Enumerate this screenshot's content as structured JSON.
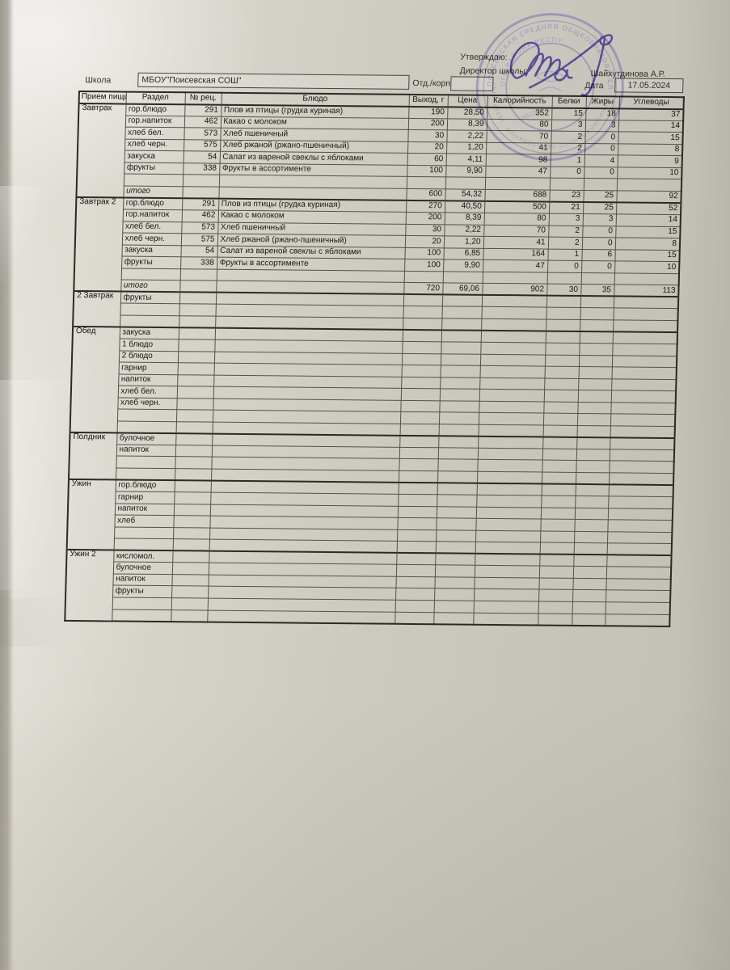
{
  "header": {
    "approve_label": "Утверждаю:",
    "director_label": "Директор школы:",
    "director_name": "Шайхутдинова А.Р.",
    "school_label": "Школа",
    "school_value": "МБОУ\"Поисевская СОШ\"",
    "dept_label": "Отд./корп",
    "dept_value": "",
    "date_label": "Дата",
    "date_value": "17.05.2024"
  },
  "table": {
    "headers": [
      "Прием пищи",
      "Раздел",
      "№ рец.",
      "Блюдо",
      "Выход, г",
      "Цена",
      "Калорийность",
      "Белки",
      "Жиры",
      "Углеводы"
    ],
    "blocks": [
      {
        "meal": "Завтрак",
        "rows": [
          {
            "section": "гор.блюдо",
            "rec": "291",
            "dish": "Плов из птицы (грудка куриная)",
            "out": "190",
            "price": "28,50",
            "cal": "352",
            "protein": "15",
            "fat": "18",
            "carbs": "37"
          },
          {
            "section": "гор.напиток",
            "rec": "462",
            "dish": "Какао с молоком",
            "out": "200",
            "price": "8,39",
            "cal": "80",
            "protein": "3",
            "fat": "3",
            "carbs": "14"
          },
          {
            "section": "хлеб бел.",
            "rec": "573",
            "dish": "Хлеб пшеничный",
            "out": "30",
            "price": "2,22",
            "cal": "70",
            "protein": "2",
            "fat": "0",
            "carbs": "15"
          },
          {
            "section": "хлеб черн.",
            "rec": "575",
            "dish": "Хлеб ржаной (ржано-пшеничный)",
            "out": "20",
            "price": "1,20",
            "cal": "41",
            "protein": "2",
            "fat": "0",
            "carbs": "8"
          },
          {
            "section": "закуска",
            "rec": "54",
            "dish": "Салат  из вареной свеклы с яблоками",
            "out": "60",
            "price": "4,11",
            "cal": "98",
            "protein": "1",
            "fat": "4",
            "carbs": "9"
          },
          {
            "section": "фрукты",
            "rec": "338",
            "dish": "Фрукты в ассортименте",
            "out": "100",
            "price": "9,90",
            "cal": "47",
            "protein": "0",
            "fat": "0",
            "carbs": "10"
          },
          {},
          {
            "total": true,
            "section": "итого",
            "out": "600",
            "price": "54,32",
            "cal": "688",
            "protein": "23",
            "fat": "25",
            "carbs": "92"
          }
        ]
      },
      {
        "meal": "Завтрак 2",
        "rows": [
          {
            "section": "гор.блюдо",
            "rec": "291",
            "dish": "Плов из птицы (грудка куриная)",
            "out": "270",
            "price": "40,50",
            "cal": "500",
            "protein": "21",
            "fat": "25",
            "carbs": "52"
          },
          {
            "section": "гор.напиток",
            "rec": "462",
            "dish": "Какао с молоком",
            "out": "200",
            "price": "8,39",
            "cal": "80",
            "protein": "3",
            "fat": "3",
            "carbs": "14"
          },
          {
            "section": "хлеб бел.",
            "rec": "573",
            "dish": "Хлеб пшеничный",
            "out": "30",
            "price": "2,22",
            "cal": "70",
            "protein": "2",
            "fat": "0",
            "carbs": "15"
          },
          {
            "section": "хлеб черн.",
            "rec": "575",
            "dish": "Хлеб ржаной (ржано-пшеничный)",
            "out": "20",
            "price": "1,20",
            "cal": "41",
            "protein": "2",
            "fat": "0",
            "carbs": "8"
          },
          {
            "section": "закуска",
            "rec": "54",
            "dish": "Салат  из вареной свеклы с  яблоками",
            "out": "100",
            "price": "6,85",
            "cal": "164",
            "protein": "1",
            "fat": "6",
            "carbs": "15"
          },
          {
            "section": "фрукты",
            "rec": "338",
            "dish": "Фрукты в ассортименте",
            "out": "100",
            "price": "9,90",
            "cal": "47",
            "protein": "0",
            "fat": "0",
            "carbs": "10"
          },
          {},
          {
            "total": true,
            "section": "итого",
            "out": "720",
            "price": "69,06",
            "cal": "902",
            "protein": "30",
            "fat": "35",
            "carbs": "113"
          }
        ]
      },
      {
        "meal": "2 Завтрак",
        "rows": [
          {
            "section": "фрукты"
          },
          {},
          {}
        ]
      },
      {
        "meal": "Обед",
        "rows": [
          {
            "section": "закуска"
          },
          {
            "section": "1 блюдо"
          },
          {
            "section": "2 блюдо"
          },
          {
            "section": "гарнир"
          },
          {
            "section": "напиток"
          },
          {
            "section": "хлеб бел."
          },
          {
            "section": "хлеб черн."
          },
          {},
          {}
        ]
      },
      {
        "meal": "Полдник",
        "rows": [
          {
            "section": "булочное"
          },
          {
            "section": "напиток"
          },
          {},
          {}
        ]
      },
      {
        "meal": "Ужин",
        "rows": [
          {
            "section": "гор.блюдо"
          },
          {
            "section": "гарнир"
          },
          {
            "section": "напиток"
          },
          {
            "section": "хлеб"
          },
          {},
          {}
        ]
      },
      {
        "meal": "Ужин 2",
        "rows": [
          {
            "section": "кисломол."
          },
          {
            "section": "булочное"
          },
          {
            "section": "напиток"
          },
          {
            "section": "фрукты"
          },
          {},
          {}
        ]
      }
    ]
  },
  "stamp": {
    "ring_text_outer": "ПОИСЕВСКАЯ СРЕДНЯЯ ОБЩЕОБРАЗОВАТЕЛЬНАЯ",
    "ring_text_inner": "ОГО РАЙОНА РЕСПУ",
    "ring_text_bottom": "МУНИЦИПАЛЬНОГО ОБРАЗОВАНИЯ",
    "ring_digits": "1635203142",
    "center_text": "МБОУ",
    "ink_color": "#5b50a6"
  },
  "signature": {
    "ink_color": "#3d3391"
  }
}
